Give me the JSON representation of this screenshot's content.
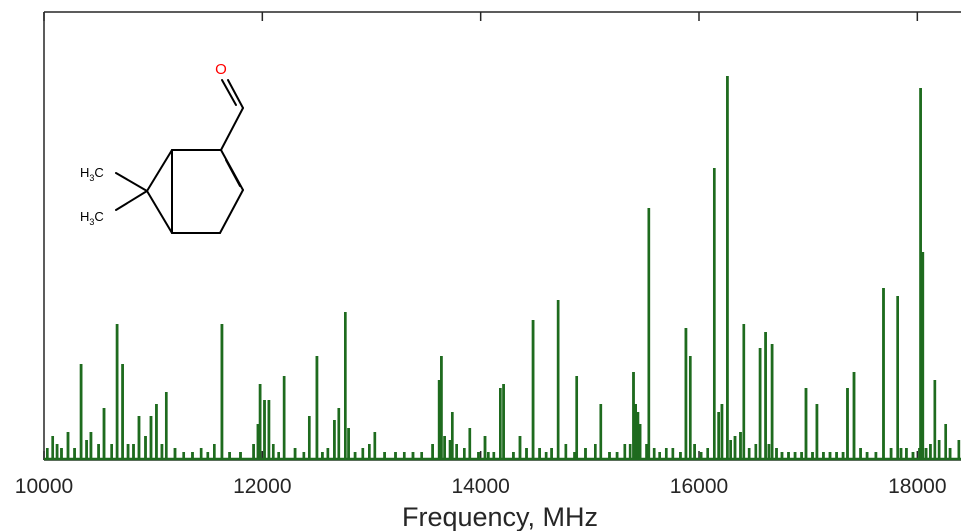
{
  "chart_data": {
    "type": "line",
    "title": "",
    "xlabel": "Frequency, MHz",
    "ylabel": "",
    "xlim": [
      10000,
      18400
    ],
    "ylim": [
      0,
      1.0
    ],
    "xticks": [
      10000,
      12000,
      14000,
      16000,
      18000
    ],
    "xtick_labels": [
      "10000",
      "12000",
      "14000",
      "16000",
      "18000"
    ],
    "grid": false,
    "legend": "none",
    "series": [
      {
        "color": "#1e6b1e",
        "peaks": [
          [
            10030,
            0.03
          ],
          [
            10080,
            0.06
          ],
          [
            10120,
            0.04
          ],
          [
            10160,
            0.03
          ],
          [
            10220,
            0.07
          ],
          [
            10280,
            0.03
          ],
          [
            10340,
            0.24
          ],
          [
            10390,
            0.05
          ],
          [
            10430,
            0.07
          ],
          [
            10500,
            0.04
          ],
          [
            10550,
            0.13
          ],
          [
            10620,
            0.04
          ],
          [
            10670,
            0.34
          ],
          [
            10720,
            0.24
          ],
          [
            10770,
            0.04
          ],
          [
            10820,
            0.04
          ],
          [
            10870,
            0.11
          ],
          [
            10930,
            0.06
          ],
          [
            10980,
            0.11
          ],
          [
            11030,
            0.14
          ],
          [
            11080,
            0.04
          ],
          [
            11120,
            0.17
          ],
          [
            11200,
            0.03
          ],
          [
            11280,
            0.02
          ],
          [
            11360,
            0.02
          ],
          [
            11440,
            0.03
          ],
          [
            11500,
            0.02
          ],
          [
            11560,
            0.04
          ],
          [
            11630,
            0.34
          ],
          [
            11700,
            0.02
          ],
          [
            11800,
            0.02
          ],
          [
            11920,
            0.04
          ],
          [
            11960,
            0.09
          ],
          [
            11980,
            0.19
          ],
          [
            12020,
            0.15
          ],
          [
            12060,
            0.15
          ],
          [
            12100,
            0.04
          ],
          [
            12150,
            0.02
          ],
          [
            12200,
            0.21
          ],
          [
            12300,
            0.03
          ],
          [
            12380,
            0.02
          ],
          [
            12430,
            0.11
          ],
          [
            12500,
            0.26
          ],
          [
            12550,
            0.02
          ],
          [
            12600,
            0.03
          ],
          [
            12660,
            0.1
          ],
          [
            12700,
            0.13
          ],
          [
            12760,
            0.37
          ],
          [
            12790,
            0.08
          ],
          [
            12850,
            0.02
          ],
          [
            12920,
            0.03
          ],
          [
            12980,
            0.04
          ],
          [
            13030,
            0.07
          ],
          [
            13120,
            0.02
          ],
          [
            13220,
            0.02
          ],
          [
            13300,
            0.02
          ],
          [
            13380,
            0.02
          ],
          [
            13460,
            0.02
          ],
          [
            13560,
            0.04
          ],
          [
            13620,
            0.2
          ],
          [
            13640,
            0.26
          ],
          [
            13670,
            0.06
          ],
          [
            13720,
            0.05
          ],
          [
            13740,
            0.12
          ],
          [
            13780,
            0.04
          ],
          [
            13850,
            0.03
          ],
          [
            13900,
            0.08
          ],
          [
            13980,
            0.02
          ],
          [
            14040,
            0.06
          ],
          [
            14070,
            0.02
          ],
          [
            14120,
            0.02
          ],
          [
            14180,
            0.18
          ],
          [
            14210,
            0.19
          ],
          [
            14300,
            0.02
          ],
          [
            14360,
            0.06
          ],
          [
            14420,
            0.03
          ],
          [
            14480,
            0.35
          ],
          [
            14540,
            0.03
          ],
          [
            14600,
            0.02
          ],
          [
            14650,
            0.03
          ],
          [
            14710,
            0.4
          ],
          [
            14780,
            0.04
          ],
          [
            14860,
            0.02
          ],
          [
            14880,
            0.21
          ],
          [
            14960,
            0.03
          ],
          [
            15050,
            0.04
          ],
          [
            15100,
            0.14
          ],
          [
            15180,
            0.02
          ],
          [
            15250,
            0.02
          ],
          [
            15320,
            0.04
          ],
          [
            15370,
            0.04
          ],
          [
            15400,
            0.22
          ],
          [
            15420,
            0.14
          ],
          [
            15440,
            0.12
          ],
          [
            15460,
            0.09
          ],
          [
            15520,
            0.04
          ],
          [
            15540,
            0.63
          ],
          [
            15590,
            0.03
          ],
          [
            15640,
            0.02
          ],
          [
            15700,
            0.03
          ],
          [
            15760,
            0.03
          ],
          [
            15830,
            0.02
          ],
          [
            15880,
            0.33
          ],
          [
            15920,
            0.26
          ],
          [
            15960,
            0.04
          ],
          [
            16020,
            0.02
          ],
          [
            16080,
            0.03
          ],
          [
            16140,
            0.73
          ],
          [
            16180,
            0.12
          ],
          [
            16210,
            0.14
          ],
          [
            16260,
            0.96
          ],
          [
            16290,
            0.05
          ],
          [
            16330,
            0.06
          ],
          [
            16380,
            0.07
          ],
          [
            16410,
            0.34
          ],
          [
            16460,
            0.03
          ],
          [
            16520,
            0.04
          ],
          [
            16560,
            0.28
          ],
          [
            16610,
            0.32
          ],
          [
            16640,
            0.04
          ],
          [
            16670,
            0.29
          ],
          [
            16710,
            0.03
          ],
          [
            16760,
            0.02
          ],
          [
            16820,
            0.02
          ],
          [
            16880,
            0.02
          ],
          [
            16940,
            0.02
          ],
          [
            16980,
            0.18
          ],
          [
            17040,
            0.02
          ],
          [
            17080,
            0.14
          ],
          [
            17140,
            0.02
          ],
          [
            17200,
            0.02
          ],
          [
            17260,
            0.02
          ],
          [
            17320,
            0.02
          ],
          [
            17360,
            0.18
          ],
          [
            17420,
            0.22
          ],
          [
            17480,
            0.03
          ],
          [
            17540,
            0.02
          ],
          [
            17620,
            0.02
          ],
          [
            17690,
            0.43
          ],
          [
            17760,
            0.03
          ],
          [
            17820,
            0.41
          ],
          [
            17850,
            0.03
          ],
          [
            17900,
            0.03
          ],
          [
            17960,
            0.02
          ],
          [
            18020,
            0.03
          ],
          [
            18030,
            0.93
          ],
          [
            18050,
            0.52
          ],
          [
            18080,
            0.03
          ],
          [
            18120,
            0.04
          ],
          [
            18160,
            0.2
          ],
          [
            18200,
            0.05
          ],
          [
            18260,
            0.09
          ],
          [
            18300,
            0.03
          ],
          [
            18380,
            0.05
          ]
        ]
      }
    ]
  },
  "molecule": {
    "oxygen_label": "O",
    "methyl_1_main": "H",
    "methyl_1_sub": "3",
    "methyl_1_tail": "C",
    "methyl_2_main": "H",
    "methyl_2_sub": "3",
    "methyl_2_tail": "C",
    "oxygen_color": "#ff0000",
    "bond_color": "#000000"
  }
}
